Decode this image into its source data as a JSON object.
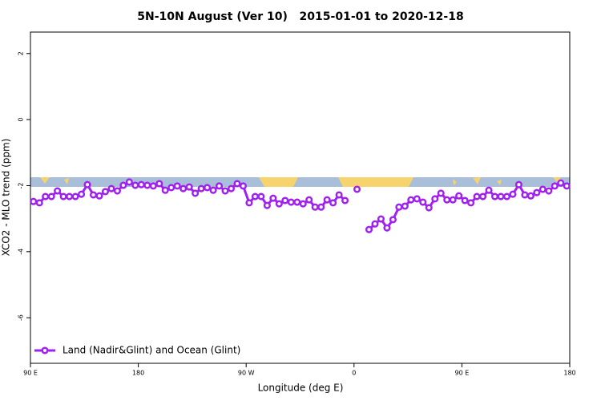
{
  "chart_data": {
    "type": "line",
    "title": "5N-10N August (Ver 10)   2015-01-01 to 2020-12-18",
    "x_label": "Longitude (deg E)",
    "y_label": "XCO2 - MLO trend (ppm)",
    "x": [
      92.5,
      97.5,
      102.5,
      107.5,
      112.5,
      117.5,
      122.5,
      127.5,
      132.5,
      137.5,
      142.5,
      147.5,
      152.5,
      157.5,
      162.5,
      167.5,
      172.5,
      177.5,
      182.5,
      187.5,
      192.5,
      197.5,
      202.5,
      207.5,
      212.5,
      217.5,
      222.5,
      227.5,
      232.5,
      237.5,
      242.5,
      247.5,
      252.5,
      257.5,
      262.5,
      267.5,
      272.5,
      277.5,
      282.5,
      287.5,
      292.5,
      297.5,
      302.5,
      307.5,
      312.5,
      317.5,
      322.5,
      327.5,
      332.5,
      337.5,
      342.5,
      347.5,
      352.5,
      357.5,
      362.5,
      367.5,
      372.5,
      377.5,
      382.5,
      387.5,
      392.5,
      397.5,
      402.5,
      407.5,
      412.5,
      417.5,
      422.5,
      427.5,
      432.5,
      437.5,
      442.5,
      447.5,
      452.5,
      457.5,
      462.5,
      467.5,
      472.5,
      477.5,
      482.5,
      487.5,
      492.5,
      497.5,
      502.5,
      507.5,
      512.5,
      517.5,
      522.5,
      527.5,
      532.5,
      537.5
    ],
    "series": [
      {
        "name": "Land (Nadir&Glint) and Ocean (Glint)",
        "color": "#a020f0",
        "values": [
          -2.48,
          -2.52,
          -2.33,
          -2.33,
          -2.16,
          -2.33,
          -2.33,
          -2.33,
          -2.26,
          -1.97,
          -2.28,
          -2.31,
          -2.18,
          -2.09,
          -2.16,
          -1.99,
          -1.89,
          -1.99,
          -1.97,
          -1.99,
          -2.01,
          -1.94,
          -2.14,
          -2.06,
          -2.01,
          -2.09,
          -2.04,
          -2.23,
          -2.09,
          -2.06,
          -2.14,
          -2.01,
          -2.16,
          -2.09,
          -1.94,
          -2.01,
          -2.52,
          -2.33,
          -2.33,
          -2.6,
          -2.38,
          -2.55,
          -2.45,
          -2.5,
          -2.5,
          -2.55,
          -2.43,
          -2.65,
          -2.65,
          -2.43,
          -2.52,
          -2.28,
          -2.45,
          null,
          -2.11,
          null,
          -3.33,
          -3.16,
          -3.01,
          -3.28,
          -3.03,
          -2.65,
          -2.62,
          -2.43,
          -2.4,
          -2.5,
          -2.67,
          -2.4,
          -2.23,
          -2.43,
          -2.43,
          -2.31,
          -2.45,
          -2.52,
          -2.33,
          -2.33,
          -2.14,
          -2.33,
          -2.33,
          -2.33,
          -2.26,
          -1.97,
          -2.28,
          -2.31,
          -2.21,
          -2.11,
          -2.16,
          -2.01,
          -1.92,
          -2.01
        ]
      }
    ],
    "xlim": [
      90,
      540
    ],
    "xticks": [
      {
        "value": 90,
        "label": "90 E"
      },
      180,
      {
        "value": 270,
        "label": "90 W"
      },
      {
        "value": 360,
        "label": "0"
      },
      {
        "value": 450,
        "label": "90 E"
      },
      {
        "value": 540,
        "label": "180"
      }
    ],
    "ylim": [
      -7.38,
      2.65
    ],
    "yticks": [
      2,
      0,
      -2,
      -4,
      -6
    ],
    "grid": false,
    "legend": "bottom-left"
  }
}
